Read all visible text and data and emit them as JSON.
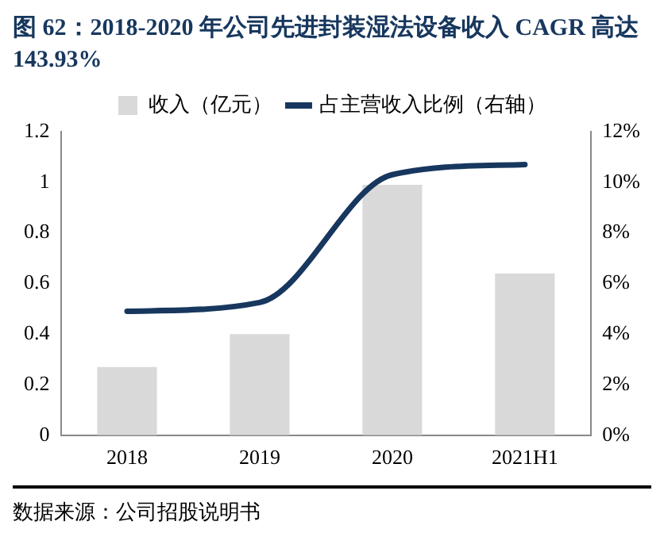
{
  "chart_data": {
    "type": "bar",
    "title": "图 62：2018-2020 年公司先进封装湿法设备收入 CAGR 高达 143.93%",
    "categories": [
      "2018",
      "2019",
      "2020",
      "2021H1"
    ],
    "series": [
      {
        "name": "收入（亿元）",
        "color": "#d9d9d9",
        "values": [
          0.27,
          0.4,
          0.99,
          0.64
        ]
      },
      {
        "name": "占主营收入比例（右轴）",
        "type": "line",
        "axis": "y2",
        "color": "#17375e",
        "values": [
          4.9,
          5.25,
          10.3,
          10.7
        ]
      }
    ],
    "ylim": [
      0,
      1.2
    ],
    "yticks": [
      0,
      0.2,
      0.4,
      0.6,
      0.8,
      1,
      1.2
    ],
    "y2lim": [
      0,
      12
    ],
    "y2ticks": [
      {
        "value": 0,
        "label": "0%"
      },
      {
        "value": 2,
        "label": "2%"
      },
      {
        "value": 4,
        "label": "4%"
      },
      {
        "value": 6,
        "label": "6%"
      },
      {
        "value": 8,
        "label": "8%"
      },
      {
        "value": 10,
        "label": "10%"
      },
      {
        "value": 12,
        "label": "12%"
      }
    ],
    "grid": false,
    "legend": "top",
    "marker": "none",
    "annotations": [
      "数据来源：公司招股说明书"
    ]
  }
}
